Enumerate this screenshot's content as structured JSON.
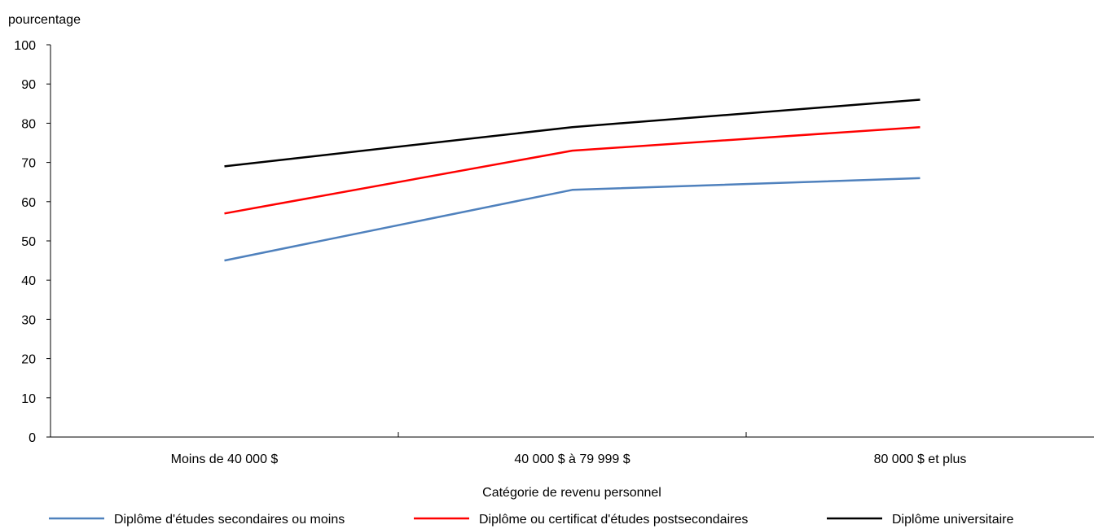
{
  "chart_data": {
    "type": "line",
    "title": "",
    "ylabel": "pourcentage",
    "xlabel": "Catégorie de revenu personnel",
    "categories": [
      "Moins de 40 000 $",
      "40 000 $ à 79 999 $",
      "80 000 $ et plus"
    ],
    "ylim": [
      0,
      100
    ],
    "yticks": [
      "0",
      "10",
      "20",
      "30",
      "40",
      "50",
      "60",
      "70",
      "80",
      "90",
      "100"
    ],
    "grid": false,
    "legend_position": "bottom",
    "series": [
      {
        "name": "Diplôme d'études secondaires ou moins",
        "color": "#4f81bd",
        "values": [
          45,
          63,
          66
        ]
      },
      {
        "name": "Diplôme ou certificat d'études postsecondaires",
        "color": "#ff0000",
        "values": [
          57,
          73,
          79
        ]
      },
      {
        "name": "Diplôme universitaire",
        "color": "#000000",
        "values": [
          69,
          79,
          86
        ]
      }
    ]
  }
}
